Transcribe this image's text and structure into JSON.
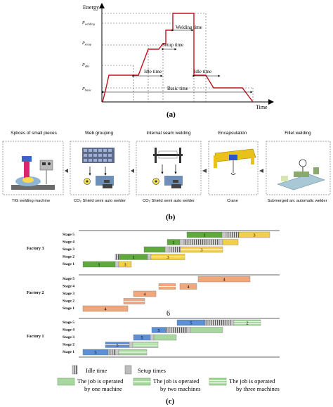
{
  "panel_a": {
    "caption": "(a)",
    "y_axis_label": "Energy",
    "x_axis_label": "Time",
    "power_levels": [
      {
        "label": "P_welding",
        "main": "P",
        "sub": "welding"
      },
      {
        "label": "P_setup",
        "main": "P",
        "sub": "setup"
      },
      {
        "label": "P_idle",
        "main": "P",
        "sub": "idle"
      },
      {
        "label": "P_basic",
        "main": "P",
        "sub": "basic"
      }
    ],
    "annotations": {
      "welding": "Welding time",
      "setup": "Setup time",
      "idle_left": "Idle time",
      "idle_right": "Idle time",
      "basic": "Basic time"
    }
  },
  "panel_b": {
    "caption": "(b)",
    "stages": [
      {
        "title": "Splices of small pieces",
        "machine": "TIG welding machine"
      },
      {
        "title": "Web grouping",
        "machine": "CO₂ Shield semi auto welder"
      },
      {
        "title": "Internal seam welding",
        "machine": "CO₂ Shield semi auto welder"
      },
      {
        "title": "Encapsulation",
        "machine": "Crane"
      },
      {
        "title": "Fillet welding",
        "machine": "Submerged arc automatic welder"
      }
    ]
  },
  "panel_c": {
    "caption": "(c)",
    "stage_labels": [
      "Stage 5",
      "Stage 4",
      "Stage 3",
      "Stage 2",
      "Stage 1"
    ],
    "factories": [
      {
        "name": "Factory 3",
        "stray_label": "",
        "bars": [
          {
            "stage": 1,
            "start": 118,
            "len": 46,
            "color": "#5fa83c",
            "mode": "one",
            "label": "1"
          },
          {
            "stage": 1,
            "start": 164,
            "len": 5,
            "color": "#c8c8c8",
            "mode": "setup",
            "label": ""
          },
          {
            "stage": 1,
            "start": 169,
            "len": 18,
            "color": "#f2d04a",
            "mode": "one",
            "label": "3"
          },
          {
            "stage": 2,
            "start": 164,
            "len": 6,
            "color": "#aaaaaa",
            "mode": "idle",
            "label": ""
          },
          {
            "stage": 2,
            "start": 170,
            "len": 40,
            "color": "#5fa83c",
            "mode": "one",
            "label": "1"
          },
          {
            "stage": 2,
            "start": 210,
            "len": 5,
            "color": "#c8c8c8",
            "mode": "setup",
            "label": ""
          },
          {
            "stage": 2,
            "start": 215,
            "len": 48,
            "color": "#f2d04a",
            "mode": "two",
            "label": "3"
          },
          {
            "stage": 3,
            "start": 205,
            "len": 30,
            "color": "#5fa83c",
            "mode": "one",
            "label": ""
          },
          {
            "stage": 3,
            "start": 235,
            "len": 6,
            "color": "#c8c8c8",
            "mode": "setup",
            "label": ""
          },
          {
            "stage": 3,
            "start": 241,
            "len": 16,
            "color": "#aaaaaa",
            "mode": "idle",
            "label": ""
          },
          {
            "stage": 3,
            "start": 257,
            "len": 60,
            "color": "#f2d04a",
            "mode": "two",
            "label": "3"
          },
          {
            "stage": 4,
            "start": 238,
            "len": 18,
            "color": "#5fa83c",
            "mode": "one",
            "label": "1"
          },
          {
            "stage": 4,
            "start": 256,
            "len": 6,
            "color": "#c8c8c8",
            "mode": "setup",
            "label": ""
          },
          {
            "stage": 4,
            "start": 262,
            "len": 12,
            "color": "#aaaaaa",
            "mode": "idle",
            "label": ""
          },
          {
            "stage": 4,
            "start": 274,
            "len": 18,
            "color": "#aaaaaa",
            "mode": "idle",
            "label": ""
          },
          {
            "stage": 4,
            "start": 292,
            "len": 20,
            "color": "#aaaaaa",
            "mode": "idle",
            "label": ""
          },
          {
            "stage": 4,
            "start": 312,
            "len": 5,
            "color": "#c8c8c8",
            "mode": "setup",
            "label": ""
          },
          {
            "stage": 4,
            "start": 317,
            "len": 22,
            "color": "#f2d04a",
            "mode": "one",
            "label": ""
          },
          {
            "stage": 5,
            "start": 266,
            "len": 50,
            "color": "#5fa83c",
            "mode": "one",
            "label": "1"
          },
          {
            "stage": 5,
            "start": 316,
            "len": 6,
            "color": "#c8c8c8",
            "mode": "setup",
            "label": ""
          },
          {
            "stage": 5,
            "start": 322,
            "len": 18,
            "color": "#aaaaaa",
            "mode": "idle",
            "label": ""
          },
          {
            "stage": 5,
            "start": 340,
            "len": 44,
            "color": "#f2d04a",
            "mode": "one",
            "label": "3"
          }
        ]
      },
      {
        "name": "Factory 2",
        "stray_label": "6",
        "bars": [
          {
            "stage": 1,
            "start": 118,
            "len": 64,
            "color": "#f1a77a",
            "mode": "one",
            "label": "4"
          },
          {
            "stage": 2,
            "start": 176,
            "len": 30,
            "color": "#f1a77a",
            "mode": "two",
            "label": ""
          },
          {
            "stage": 3,
            "start": 190,
            "len": 32,
            "color": "#f1a77a",
            "mode": "one",
            "label": "4"
          },
          {
            "stage": 4,
            "start": 226,
            "len": 24,
            "color": "#f1a77a",
            "mode": "two",
            "label": ""
          },
          {
            "stage": 4,
            "start": 256,
            "len": 24,
            "color": "#f1a77a",
            "mode": "one",
            "label": "4"
          },
          {
            "stage": 5,
            "start": 282,
            "len": 74,
            "color": "#f1a77a",
            "mode": "one",
            "label": "4"
          }
        ]
      },
      {
        "name": "Factory 1",
        "stray_label": "",
        "bars": [
          {
            "stage": 1,
            "start": 118,
            "len": 36,
            "color": "#5b8fd6",
            "mode": "one",
            "label": "5"
          },
          {
            "stage": 1,
            "start": 154,
            "len": 10,
            "color": "#aaaaaa",
            "mode": "idle",
            "label": ""
          },
          {
            "stage": 1,
            "start": 164,
            "len": 5,
            "color": "#c8c8c8",
            "mode": "setup",
            "label": ""
          },
          {
            "stage": 1,
            "start": 169,
            "len": 40,
            "color": "#a8d8a0",
            "mode": "two",
            "label": ""
          },
          {
            "stage": 2,
            "start": 150,
            "len": 34,
            "color": "#5b8fd6",
            "mode": "two",
            "label": "5"
          },
          {
            "stage": 2,
            "start": 184,
            "len": 5,
            "color": "#c8c8c8",
            "mode": "setup",
            "label": ""
          },
          {
            "stage": 2,
            "start": 189,
            "len": 36,
            "color": "#a8d8a0",
            "mode": "three",
            "label": ""
          },
          {
            "stage": 3,
            "start": 190,
            "len": 24,
            "color": "#5b8fd6",
            "mode": "one",
            "label": "5"
          },
          {
            "stage": 3,
            "start": 214,
            "len": 5,
            "color": "#c8c8c8",
            "mode": "setup",
            "label": ""
          },
          {
            "stage": 3,
            "start": 219,
            "len": 32,
            "color": "#a8d8a0",
            "mode": "one",
            "label": ""
          },
          {
            "stage": 4,
            "start": 216,
            "len": 20,
            "color": "#5b8fd6",
            "mode": "one",
            "label": "5"
          },
          {
            "stage": 4,
            "start": 236,
            "len": 30,
            "color": "#aaaaaa",
            "mode": "idle",
            "label": ""
          },
          {
            "stage": 4,
            "start": 266,
            "len": 5,
            "color": "#c8c8c8",
            "mode": "setup",
            "label": ""
          },
          {
            "stage": 4,
            "start": 271,
            "len": 46,
            "color": "#a8d8a0",
            "mode": "one",
            "label": ""
          },
          {
            "stage": 5,
            "start": 252,
            "len": 40,
            "color": "#5b8fd6",
            "mode": "one",
            "label": "5"
          },
          {
            "stage": 5,
            "start": 292,
            "len": 36,
            "color": "#aaaaaa",
            "mode": "idle",
            "label": ""
          },
          {
            "stage": 5,
            "start": 328,
            "len": 5,
            "color": "#c8c8c8",
            "mode": "setup",
            "label": ""
          },
          {
            "stage": 5,
            "start": 333,
            "len": 38,
            "color": "#a8d8a0",
            "mode": "three",
            "label": "2"
          }
        ]
      }
    ],
    "legend": {
      "idle": "Idle time",
      "setup": "Setup times",
      "one_line1": "The job is operated",
      "one_line2": "by one machine",
      "two_line1": "The job is operated",
      "two_line2": "by two machines",
      "three_line1": "The job is operated",
      "three_line2": "by three machines"
    }
  }
}
